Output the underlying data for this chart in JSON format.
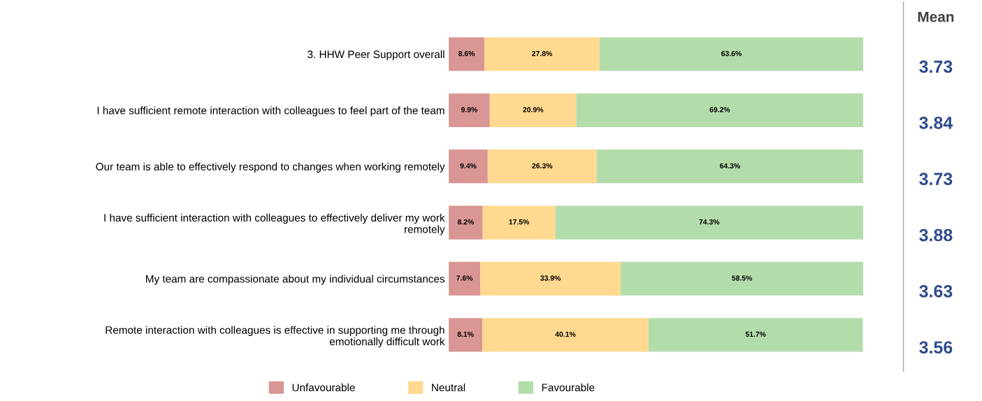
{
  "chart_data": {
    "type": "bar",
    "orientation": "horizontal",
    "stacked": true,
    "legend": "bottom",
    "grid": false,
    "categories": [
      "3. HHW Peer Support overall",
      "I have sufficient remote interaction with colleagues to feel part of the team",
      "Our team is able to effectively respond to changes when working remotely",
      "I have sufficient interaction with colleagues to effectively deliver my work\nremotely",
      "My team are compassionate about my individual circumstances",
      "Remote interaction with colleagues is effective in supporting me through\nemotionally difficult work"
    ],
    "series": [
      {
        "name": "Unfavourable",
        "color": "#d99694",
        "values": [
          8.6,
          9.9,
          9.4,
          8.2,
          7.6,
          8.1
        ],
        "value_labels": [
          "8.6%",
          "9.9%",
          "9.4%",
          "8.2%",
          "7.6%",
          "8.1%"
        ]
      },
      {
        "name": "Neutral",
        "color": "#ffd98f",
        "values": [
          27.8,
          20.9,
          26.3,
          17.5,
          33.9,
          40.1
        ],
        "value_labels": [
          "27.8%",
          "20.9%",
          "26.3%",
          "17.5%",
          "33.9%",
          "40.1%"
        ]
      },
      {
        "name": "Favourable",
        "color": "#b3dcab",
        "values": [
          63.6,
          69.2,
          64.3,
          74.3,
          58.5,
          51.7
        ],
        "value_labels": [
          "63.6%",
          "69.2%",
          "64.3%",
          "74.3%",
          "58.5%",
          "51.7%"
        ]
      }
    ],
    "annotations": [
      "Mean",
      "3.73",
      "3.84",
      "3.73",
      "3.88",
      "3.63",
      "3.56"
    ]
  }
}
